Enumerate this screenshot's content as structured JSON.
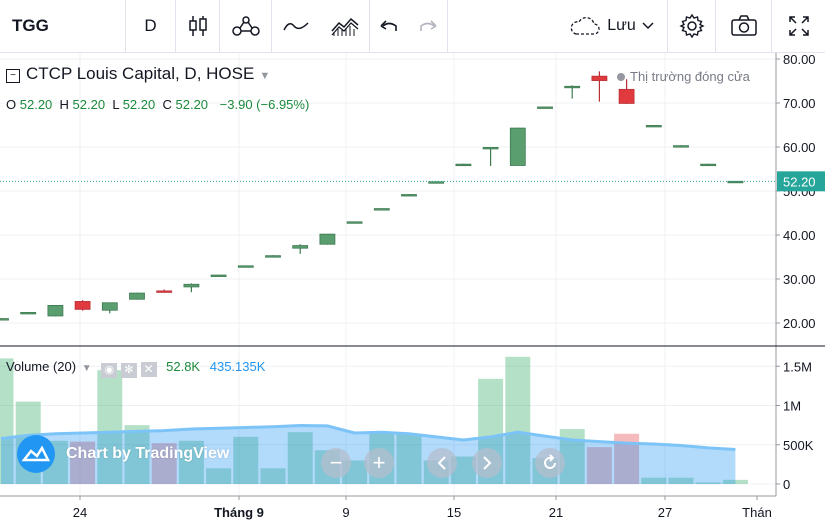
{
  "toolbar": {
    "symbol": "TGG",
    "interval": "D",
    "save_label": "Lưu"
  },
  "legend": {
    "title": "CTCP Louis Capital, D, HOSE",
    "o_label": "O",
    "o": "52.20",
    "h_label": "H",
    "h": "52.20",
    "l_label": "L",
    "l": "52.20",
    "c_label": "C",
    "c": "52.20",
    "change": "−3.90 (−6.95%)",
    "market_status": "Thị trường đóng cửa"
  },
  "volume_legend": {
    "label": "Volume (20)",
    "value": "52.8K",
    "ma_value": "435.135K"
  },
  "branding": {
    "label": "Chart by TradingView"
  },
  "colors": {
    "up": "#26a65b",
    "up_fill": "#5a9e6f",
    "down": "#e0393e",
    "accent": "#2196f3",
    "last_price": "#26a69a"
  },
  "chart_data": {
    "type": "candlestick",
    "price_axis": {
      "ticks": [
        20,
        30,
        40,
        50,
        60,
        70,
        80
      ],
      "tick_labels": [
        "20.00",
        "30.00",
        "40.00",
        "50.00",
        "60.00",
        "70.00",
        "80.00"
      ]
    },
    "volume_axis": {
      "ticks": [
        0,
        500000,
        1000000,
        1500000
      ],
      "tick_labels": [
        "0",
        "500K",
        "1M",
        "1.5M"
      ]
    },
    "x_labels": [
      "24",
      "Tháng 9",
      "9",
      "15",
      "21",
      "27",
      "Thán"
    ],
    "last_price": 52.2,
    "last_price_label": "52.20",
    "candles": [
      {
        "o": 20.9,
        "h": 21.1,
        "l": 20.7,
        "c": 21.0,
        "v": 1600000
      },
      {
        "o": 22.3,
        "h": 22.5,
        "l": 22.0,
        "c": 22.4,
        "v": 1050000
      },
      {
        "o": 21.6,
        "h": 24.0,
        "l": 21.5,
        "c": 24.0,
        "v": 550000
      },
      {
        "o": 24.9,
        "h": 25.2,
        "l": 22.8,
        "c": 23.1,
        "v": 540000
      },
      {
        "o": 22.9,
        "h": 24.5,
        "l": 22.2,
        "c": 24.6,
        "v": 1450000
      },
      {
        "o": 25.4,
        "h": 26.9,
        "l": 25.3,
        "c": 26.8,
        "v": 750000
      },
      {
        "o": 27.3,
        "h": 27.6,
        "l": 26.9,
        "c": 27.0,
        "v": 520000
      },
      {
        "o": 28.2,
        "h": 29.0,
        "l": 27.0,
        "c": 28.8,
        "v": 550000
      },
      {
        "o": 30.8,
        "h": 31.0,
        "l": 30.7,
        "c": 30.9,
        "v": 200000
      },
      {
        "o": 32.9,
        "h": 33.0,
        "l": 32.7,
        "c": 33.0,
        "v": 600000
      },
      {
        "o": 35.2,
        "h": 35.4,
        "l": 35.0,
        "c": 35.3,
        "v": 200000
      },
      {
        "o": 37.0,
        "h": 37.9,
        "l": 35.7,
        "c": 37.6,
        "v": 660000
      },
      {
        "o": 37.9,
        "h": 40.2,
        "l": 37.8,
        "c": 40.2,
        "v": 430000
      },
      {
        "o": 42.9,
        "h": 43.0,
        "l": 42.7,
        "c": 43.0,
        "v": 300000
      },
      {
        "o": 45.9,
        "h": 46.0,
        "l": 45.7,
        "c": 46.0,
        "v": 650000
      },
      {
        "o": 49.1,
        "h": 49.3,
        "l": 48.9,
        "c": 49.2,
        "v": 640000
      },
      {
        "o": 52.0,
        "h": 52.2,
        "l": 51.8,
        "c": 52.1,
        "v": 300000
      },
      {
        "o": 56.0,
        "h": 56.2,
        "l": 55.8,
        "c": 56.1,
        "v": 350000
      },
      {
        "o": 59.9,
        "h": 60.0,
        "l": 55.7,
        "c": 59.9,
        "v": 1340000
      },
      {
        "o": 55.8,
        "h": 64.4,
        "l": 55.8,
        "c": 64.3,
        "v": 1620000
      },
      {
        "o": 69.0,
        "h": 69.2,
        "l": 68.8,
        "c": 69.1,
        "v": 330000
      },
      {
        "o": 73.8,
        "h": 74.0,
        "l": 71.0,
        "c": 73.8,
        "v": 700000
      },
      {
        "o": 76.1,
        "h": 77.2,
        "l": 70.3,
        "c": 75.1,
        "v": 470000
      },
      {
        "o": 73.1,
        "h": 75.4,
        "l": 69.8,
        "c": 69.9,
        "v": 640000
      },
      {
        "o": 64.8,
        "h": 65.0,
        "l": 64.6,
        "c": 64.9,
        "v": 80000
      },
      {
        "o": 60.3,
        "h": 60.4,
        "l": 60.1,
        "c": 60.3,
        "v": 80000
      },
      {
        "o": 56.1,
        "h": 56.2,
        "l": 55.9,
        "c": 56.1,
        "v": 20000
      },
      {
        "o": 52.2,
        "h": 52.2,
        "l": 52.2,
        "c": 52.2,
        "v": 52800
      }
    ],
    "volume_ma": [
      580000,
      620000,
      640000,
      650000,
      660000,
      670000,
      680000,
      700000,
      710000,
      720000,
      730000,
      745000,
      740000,
      650000,
      660000,
      640000,
      600000,
      560000,
      600000,
      660000,
      610000,
      560000,
      540000,
      520000,
      510000,
      490000,
      460000,
      440000
    ]
  }
}
